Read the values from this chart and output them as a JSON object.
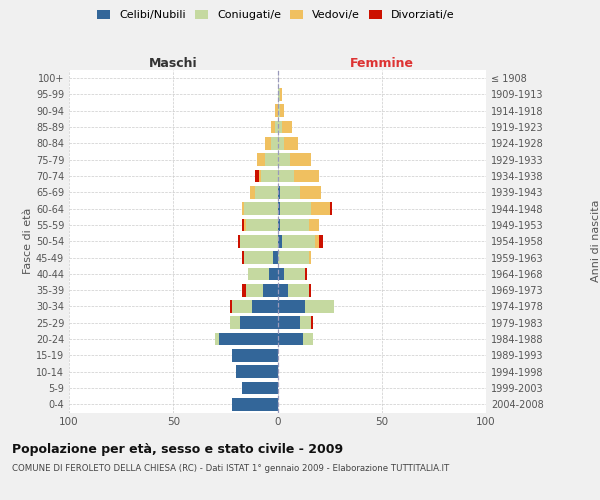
{
  "age_groups": [
    "0-4",
    "5-9",
    "10-14",
    "15-19",
    "20-24",
    "25-29",
    "30-34",
    "35-39",
    "40-44",
    "45-49",
    "50-54",
    "55-59",
    "60-64",
    "65-69",
    "70-74",
    "75-79",
    "80-84",
    "85-89",
    "90-94",
    "95-99",
    "100+"
  ],
  "birth_years": [
    "2004-2008",
    "1999-2003",
    "1994-1998",
    "1989-1993",
    "1984-1988",
    "1979-1983",
    "1974-1978",
    "1969-1973",
    "1964-1968",
    "1959-1963",
    "1954-1958",
    "1949-1953",
    "1944-1948",
    "1939-1943",
    "1934-1938",
    "1929-1933",
    "1924-1928",
    "1919-1923",
    "1914-1918",
    "1909-1913",
    "≤ 1908"
  ],
  "maschi": {
    "celibi": [
      22,
      17,
      20,
      22,
      28,
      18,
      12,
      7,
      4,
      2,
      0,
      0,
      0,
      0,
      0,
      0,
      0,
      0,
      0,
      0,
      0
    ],
    "coniugati": [
      0,
      0,
      0,
      0,
      2,
      5,
      10,
      8,
      10,
      14,
      18,
      15,
      16,
      11,
      8,
      6,
      3,
      1,
      0,
      0,
      0
    ],
    "vedovi": [
      0,
      0,
      0,
      0,
      0,
      0,
      0,
      0,
      0,
      0,
      0,
      1,
      1,
      2,
      1,
      4,
      3,
      2,
      1,
      0,
      0
    ],
    "divorziati": [
      0,
      0,
      0,
      0,
      0,
      0,
      1,
      2,
      0,
      1,
      1,
      1,
      0,
      0,
      2,
      0,
      0,
      0,
      0,
      0,
      0
    ]
  },
  "femmine": {
    "nubili": [
      0,
      0,
      0,
      0,
      12,
      11,
      13,
      5,
      3,
      0,
      2,
      1,
      1,
      1,
      0,
      0,
      0,
      0,
      0,
      0,
      0
    ],
    "coniugate": [
      0,
      0,
      0,
      0,
      5,
      5,
      14,
      10,
      10,
      15,
      16,
      14,
      15,
      10,
      8,
      6,
      3,
      2,
      1,
      1,
      0
    ],
    "vedove": [
      0,
      0,
      0,
      0,
      0,
      0,
      0,
      0,
      0,
      1,
      2,
      5,
      9,
      10,
      12,
      10,
      7,
      5,
      2,
      1,
      0
    ],
    "divorziate": [
      0,
      0,
      0,
      0,
      0,
      1,
      0,
      1,
      1,
      0,
      2,
      0,
      1,
      0,
      0,
      0,
      0,
      0,
      0,
      0,
      0
    ]
  },
  "colors": {
    "celibi": "#336699",
    "coniugati": "#c5d9a0",
    "vedovi": "#f0c060",
    "divorziati": "#cc1100"
  },
  "xlim": 100,
  "title": "Popolazione per età, sesso e stato civile - 2009",
  "subtitle": "COMUNE DI FEROLETO DELLA CHIESA (RC) - Dati ISTAT 1° gennaio 2009 - Elaborazione TUTTITALIA.IT",
  "ylabel_left": "Fasce di età",
  "ylabel_right": "Anni di nascita",
  "xlabel_maschi": "Maschi",
  "xlabel_femmine": "Femmine",
  "bg_color": "#f0f0f0",
  "plot_bg": "#ffffff",
  "grid_color": "#cccccc"
}
